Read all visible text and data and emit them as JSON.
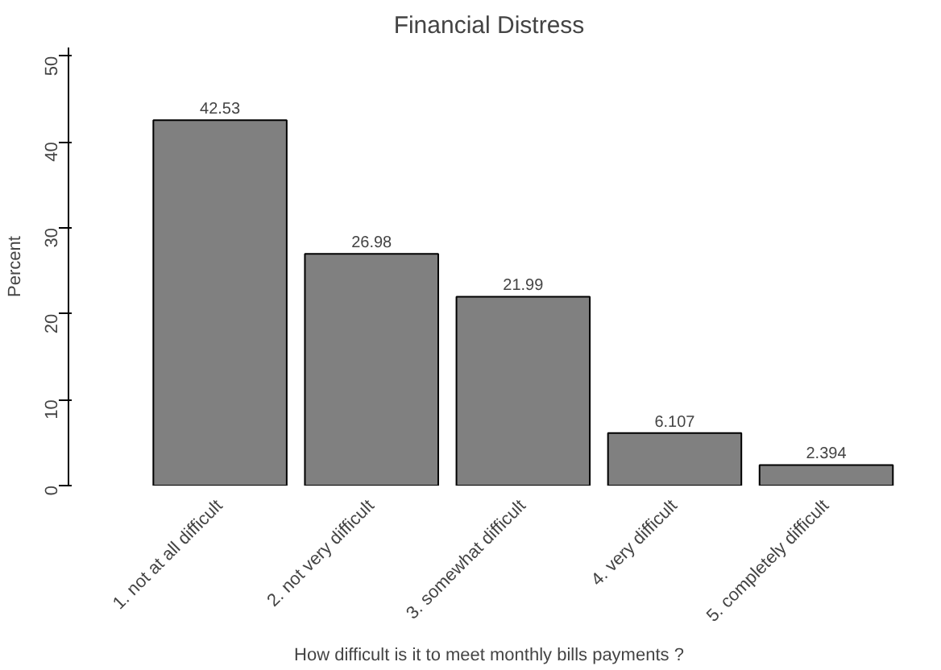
{
  "chart_data": {
    "type": "bar",
    "title": "Financial Distress",
    "xlabel": "How difficult is it to meet monthly bills payments ?",
    "ylabel": "Percent",
    "categories": [
      "1. not at all difficult",
      "2. not very difficult",
      "3. somewhat difficult",
      "4. very difficult",
      "5. completely difficult"
    ],
    "values": [
      42.53,
      26.98,
      21.99,
      6.107,
      2.394
    ],
    "value_labels": [
      "42.53",
      "26.98",
      "21.99",
      "6.107",
      "2.394"
    ],
    "color": "#808080",
    "ylim": [
      0,
      51
    ],
    "yticks": [
      0,
      10,
      20,
      30,
      40,
      50
    ],
    "grid": false
  }
}
